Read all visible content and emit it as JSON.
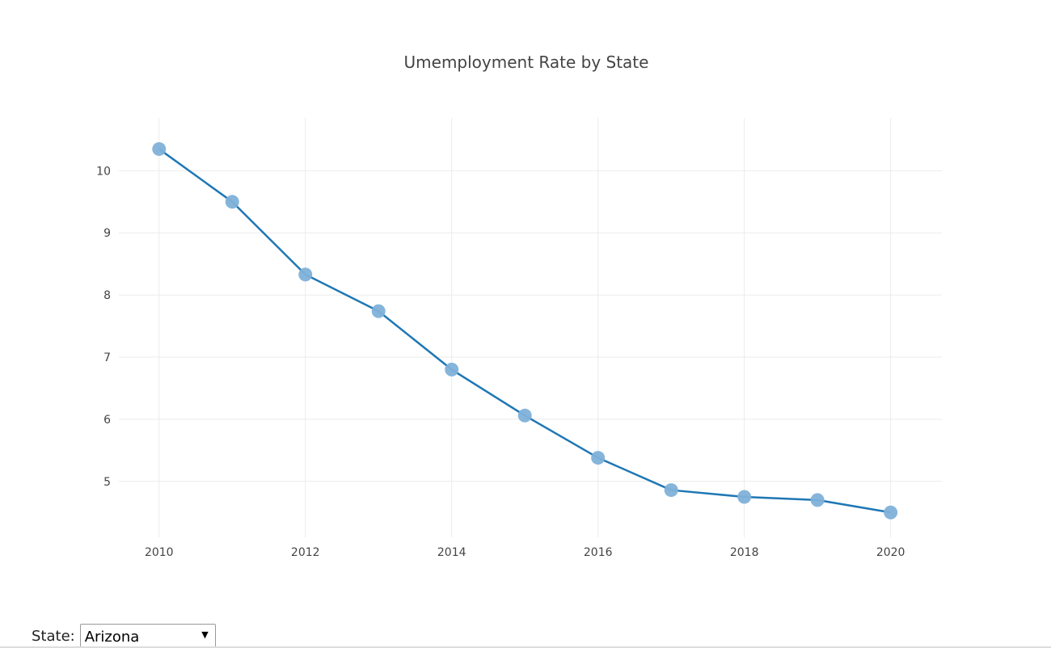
{
  "chart_data": {
    "type": "line",
    "title": "Umemployment Rate by State",
    "xlabel": "",
    "ylabel": "",
    "x": [
      2010,
      2011,
      2012,
      2013,
      2014,
      2015,
      2016,
      2017,
      2018,
      2019,
      2020
    ],
    "series": [
      {
        "values": [
          10.35,
          9.5,
          8.33,
          7.74,
          6.8,
          6.06,
          5.38,
          4.86,
          4.75,
          4.7,
          4.5
        ],
        "line_color": "#1f77b4",
        "marker_color": "#7fb1d9"
      }
    ],
    "xlim": [
      2009.45,
      2020.7
    ],
    "ylim": [
      4.1,
      10.85
    ],
    "xticks": [
      2010,
      2012,
      2014,
      2016,
      2018,
      2020
    ],
    "yticks": [
      5,
      6,
      7,
      8,
      9,
      10
    ],
    "grid": true,
    "legend": "none"
  },
  "controls": {
    "state_label": "State:",
    "state_value": "Arizona",
    "dropdown_arrow": "▼"
  }
}
